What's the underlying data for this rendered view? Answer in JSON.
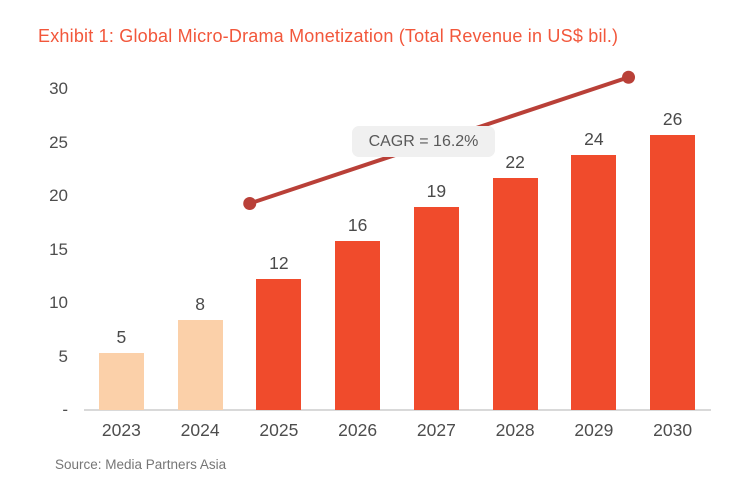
{
  "header": {
    "title": "Exhibit 1: Global Micro-Drama Monetization (Total Revenue in US$ bil.)"
  },
  "footer": {
    "source": "Source: Media Partners Asia"
  },
  "chart_data": {
    "type": "bar",
    "title": "Exhibit 1: Global Micro-Drama Monetization (Total Revenue in US$ bil.)",
    "categories": [
      "2023",
      "2024",
      "2025",
      "2026",
      "2027",
      "2028",
      "2029",
      "2030"
    ],
    "values": [
      5.3,
      8.4,
      12.2,
      15.8,
      19.0,
      21.7,
      23.8,
      25.7
    ],
    "data_labels": [
      "5",
      "8",
      "12",
      "16",
      "19",
      "22",
      "24",
      "26"
    ],
    "xlabel": "",
    "ylabel": "",
    "ylim": [
      0,
      30
    ],
    "y_tick_values": [
      30,
      25,
      20,
      15,
      10,
      5,
      0
    ],
    "y_tick_labels": [
      "30",
      "25",
      "20",
      "15",
      "10",
      "5",
      "-"
    ],
    "grid": false,
    "legend": "none",
    "annotation": {
      "text": "CAGR = 16.2%"
    },
    "trend_line": {
      "start_x_index": 1.63,
      "start_value": 19.3,
      "end_x_index": 6.44,
      "end_value": 31.1
    },
    "colors": {
      "bar_actual": "#FBD0A9",
      "bar_forecast": "#F04B2C",
      "forecast_from_index": 2,
      "trend_line": "#B94038",
      "title_text": "#F2573B",
      "annotation_bg": "#F0F0F0",
      "annotation_text": "#595959",
      "axis_text": "#4D4D4D",
      "source_text": "#767676",
      "baseline": "#D9D9D9"
    }
  }
}
